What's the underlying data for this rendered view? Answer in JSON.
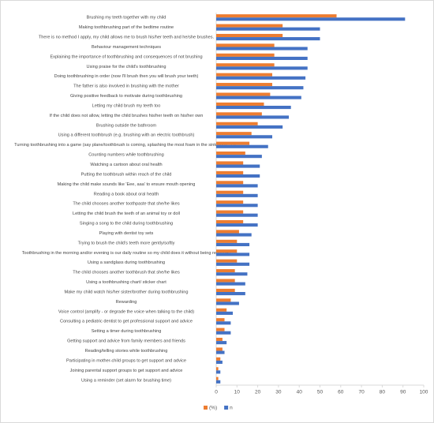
{
  "chart_data": {
    "type": "barh",
    "categories": [
      "Brushing my teeth together with my child",
      "Making toothbrushing part of the bedtime routine",
      "There is no method I apply, my child allows me to brush his/her teeth and he/she brushes.",
      "Behaviour management techniques",
      "Explaining the importance of toothbrushing and consequences of not brushing",
      "Using praise for the child's toothbrushing",
      "Doing toothbrushing in order (now I'll brush then you will brush your teeth)",
      "The father is also involved in brushing with the mother",
      "Giving positive feedback to motivate during toothbrushing",
      "Letting my child brush my teeth too",
      "If the child does not allow, letting the child brushes his/her teeth on his/her own",
      "Brushing outside the bathroom",
      "Using a different toothbrush (e.g. brushing with an electric toothbrush)",
      "Turning toothbrushing into a game (say plane/toothbrush is coming, splashing the most foam in the sink game, etc.",
      "Counting numbers while toothbrushing",
      "Watching a cartoon about oral health",
      "Putting the toothbrush within reach of the child",
      "Making the child make sounds like 'Eee, aaa' to ensure mouth opening",
      "Reading a book about oral health",
      "The child chooses another toothpaste that she/he likes",
      "Letting the child brush the teeth of an animal toy or doll",
      "Singing a song to the child during toothbrushing",
      "Playing with dentist toy sets",
      "Trying to brush the child's teeth more gently/softly",
      "Toothbrushing in the morning and/or evening is our daily routine so my child does it without being reminded",
      "Using a sandglass during toothbrushing",
      "The child chooses another toothbrush that she/he likes",
      "Using a toothbrushing chart/ sticker chart",
      "Make my child watch his/her sister/brother during toothbrushing",
      "Rewarding",
      "Voice control (amplify - or degrade the voice when talking to the child)",
      "Consulting a pediatric dentist to get professional support and advice",
      "Setting a timer during toothbrushing",
      "Getting support and advice from family members and friends",
      "Reading/telling stories while toothbrushing",
      "Participating in mother-child groups to get support and advice",
      "Joining parental support groups to get support and advice",
      "Using a reminder (set alarm for brushing time)"
    ],
    "series": [
      {
        "name": "(%)",
        "color": "#ED7D31",
        "values": [
          58,
          32,
          32,
          28,
          28,
          28,
          27,
          27,
          26,
          23,
          22,
          20,
          17,
          16,
          14,
          13,
          13,
          13,
          13,
          13,
          13,
          13,
          11,
          10,
          10,
          10,
          9,
          9,
          9,
          7,
          5,
          4,
          4,
          3,
          3,
          2,
          1,
          1
        ]
      },
      {
        "name": "n",
        "color": "#4472C4",
        "values": [
          91,
          50,
          50,
          44,
          44,
          44,
          43,
          42,
          41,
          36,
          35,
          32,
          27,
          25,
          22,
          21,
          21,
          20,
          20,
          20,
          20,
          20,
          17,
          16,
          16,
          16,
          15,
          14,
          14,
          11,
          8,
          7,
          7,
          5,
          4,
          3,
          2,
          2
        ]
      }
    ],
    "xlim": [
      0,
      100
    ],
    "xticks": [
      0,
      10,
      20,
      30,
      40,
      50,
      60,
      70,
      80,
      90,
      100
    ]
  }
}
